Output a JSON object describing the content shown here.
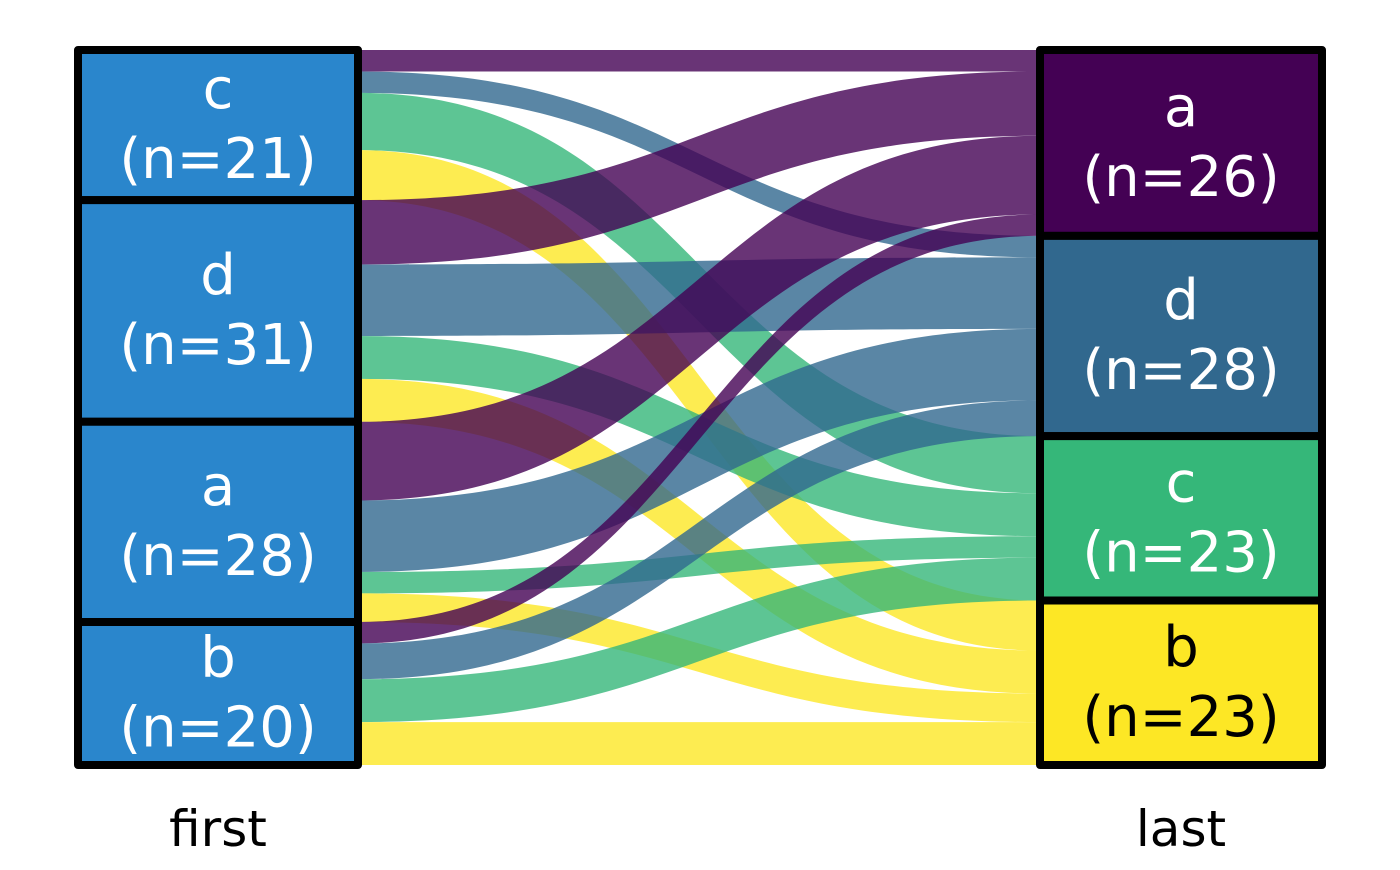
{
  "chart_data": {
    "type": "alluvial",
    "axes": [
      {
        "label": "first",
        "strata": [
          {
            "name": "c",
            "label": "c",
            "count_label": "(n=21)",
            "n": 21
          },
          {
            "name": "d",
            "label": "d",
            "count_label": "(n=31)",
            "n": 31
          },
          {
            "name": "a",
            "label": "a",
            "count_label": "(n=28)",
            "n": 28
          },
          {
            "name": "b",
            "label": "b",
            "count_label": "(n=20)",
            "n": 20
          }
        ]
      },
      {
        "label": "last",
        "strata": [
          {
            "name": "a",
            "label": "a",
            "count_label": "(n=26)",
            "n": 26
          },
          {
            "name": "d",
            "label": "d",
            "count_label": "(n=28)",
            "n": 28
          },
          {
            "name": "c",
            "label": "c",
            "count_label": "(n=23)",
            "n": 23
          },
          {
            "name": "b",
            "label": "b",
            "count_label": "(n=23)",
            "n": 23
          }
        ]
      }
    ],
    "flows": [
      {
        "from": "c",
        "to": "a",
        "value": 3
      },
      {
        "from": "c",
        "to": "d",
        "value": 3
      },
      {
        "from": "c",
        "to": "c",
        "value": 8
      },
      {
        "from": "c",
        "to": "b",
        "value": 7
      },
      {
        "from": "d",
        "to": "a",
        "value": 9
      },
      {
        "from": "d",
        "to": "d",
        "value": 10
      },
      {
        "from": "d",
        "to": "c",
        "value": 6
      },
      {
        "from": "d",
        "to": "b",
        "value": 6
      },
      {
        "from": "a",
        "to": "a",
        "value": 11
      },
      {
        "from": "a",
        "to": "d",
        "value": 10
      },
      {
        "from": "a",
        "to": "c",
        "value": 3
      },
      {
        "from": "a",
        "to": "b",
        "value": 4
      },
      {
        "from": "b",
        "to": "a",
        "value": 3
      },
      {
        "from": "b",
        "to": "d",
        "value": 5
      },
      {
        "from": "b",
        "to": "c",
        "value": 6
      },
      {
        "from": "b",
        "to": "b",
        "value": 6
      }
    ],
    "colors": {
      "a": "#440154",
      "d": "#31688E",
      "c": "#35B779",
      "b": "#FDE725",
      "first_stratum_fill": "#2A86CC"
    },
    "label_colors": {
      "a": "#ffffff",
      "d": "#ffffff",
      "c": "#ffffff",
      "b": "#000000",
      "first": "#ffffff"
    }
  }
}
